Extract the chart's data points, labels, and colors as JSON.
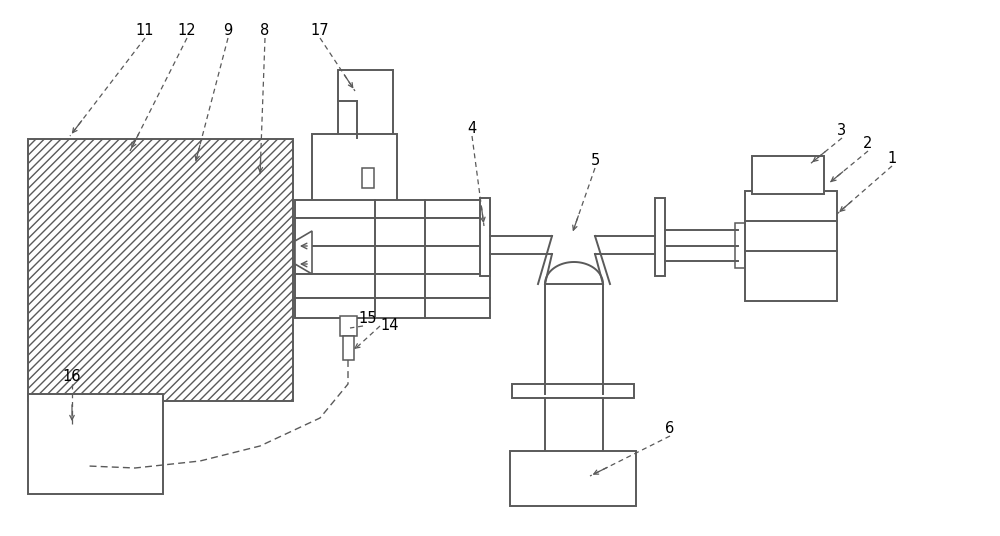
{
  "bg_color": "#ffffff",
  "line_color": "#5a5a5a",
  "fig_width": 10.0,
  "fig_height": 5.36,
  "label_fontsize": 10.5
}
